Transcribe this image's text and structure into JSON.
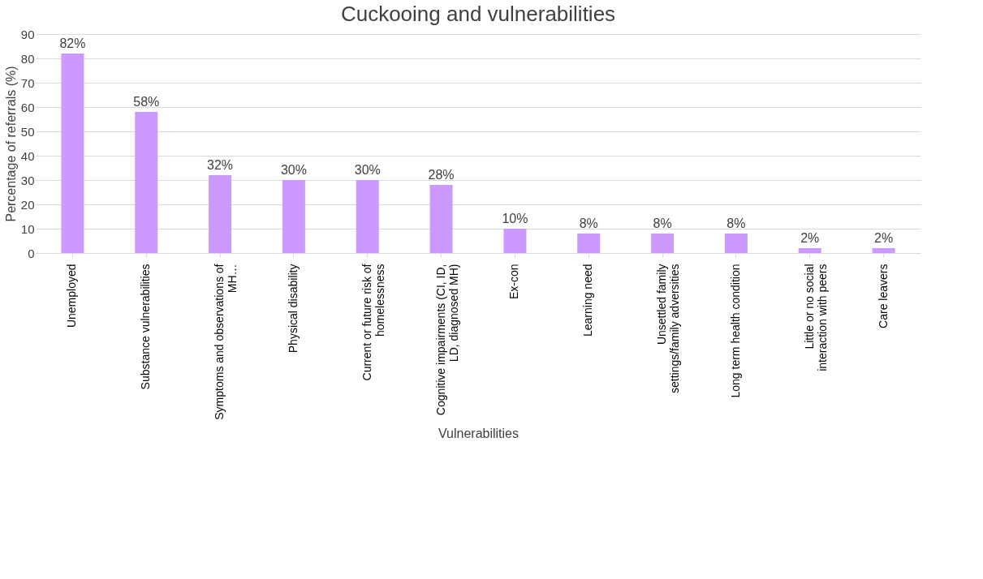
{
  "chart_data": {
    "type": "bar",
    "title": "Cuckooing and vulnerabilities",
    "xlabel": "Vulnerabilities",
    "ylabel": "Percentage of referrals (%)",
    "categories": [
      "Unemployed",
      "Substance vulnerabilities",
      "Symptoms and observations of MH…",
      "Physical disability",
      "Current or future risk of homelessness",
      "Cognitive impairments (CI, ID, LD, diagnosed MH)",
      "Ex-con",
      "Learning need",
      "Unsettled family settings/family adversities",
      "Long term health condition",
      "Little or no social interaction with peers",
      "Care leavers"
    ],
    "values": [
      82,
      58,
      32,
      30,
      30,
      28,
      10,
      8,
      8,
      8,
      2,
      2
    ],
    "value_labels": [
      "82%",
      "58%",
      "32%",
      "30%",
      "30%",
      "28%",
      "10%",
      "8%",
      "8%",
      "8%",
      "2%",
      "2%"
    ],
    "color": "#cc99ff",
    "ylim": [
      0,
      90
    ],
    "yticks": [
      0,
      10,
      20,
      30,
      40,
      50,
      60,
      70,
      80,
      90
    ],
    "grid": "y"
  }
}
